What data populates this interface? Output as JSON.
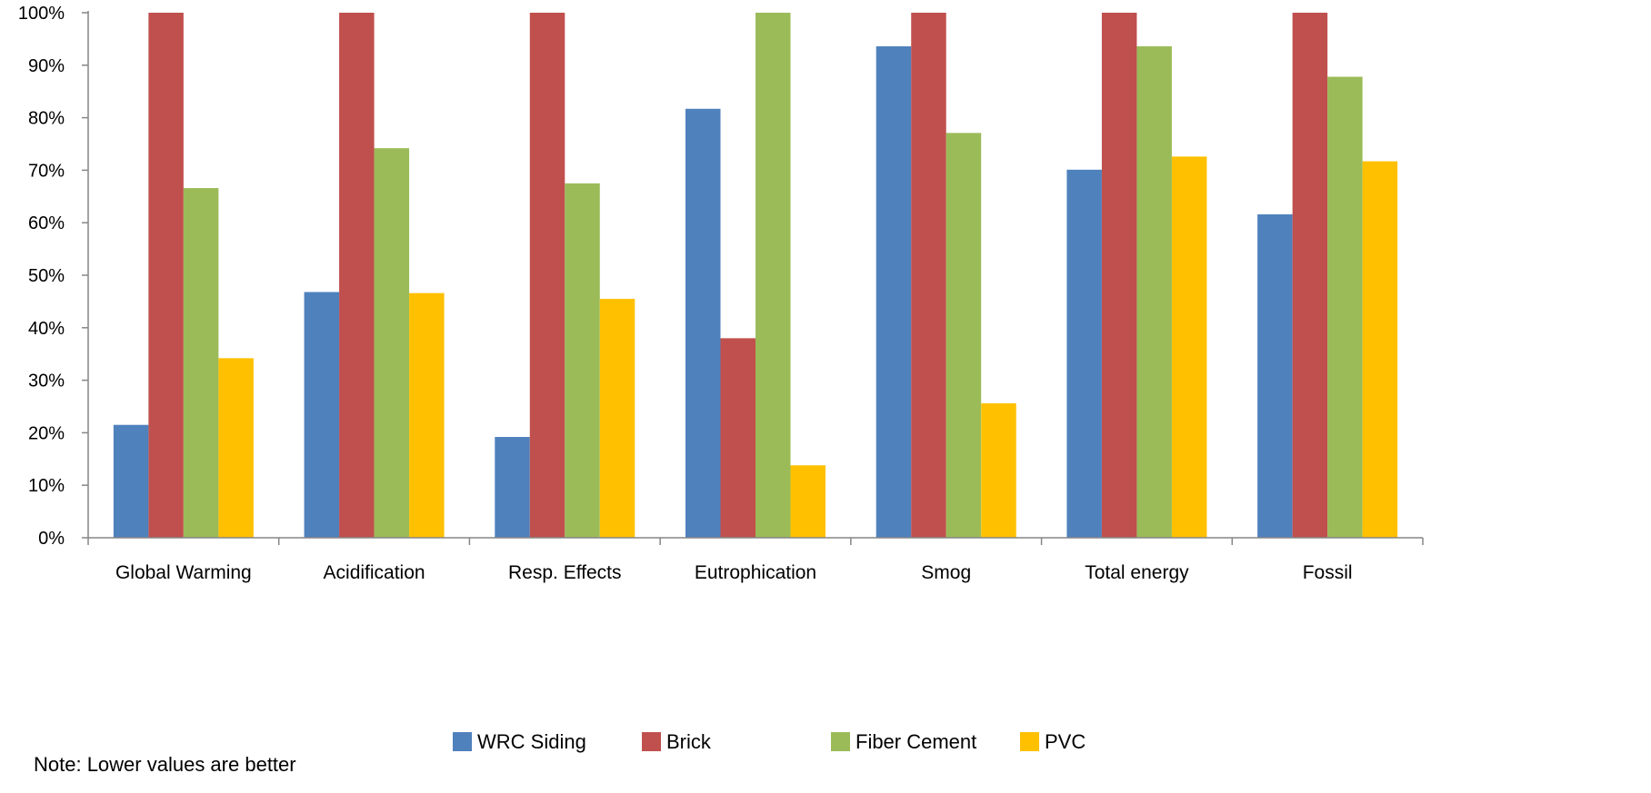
{
  "note": "Note: Lower values are better",
  "colors": {
    "wrc_siding": "#4f81bd",
    "brick": "#c0504d",
    "fiber_cement": "#9bbb59",
    "pvc": "#ffc000",
    "axis": "#868686",
    "text": "#000000"
  },
  "chart_data": {
    "type": "bar",
    "title": "",
    "xlabel": "",
    "ylabel": "",
    "ylim": [
      0,
      100
    ],
    "y_unit": "%",
    "y_ticks": [
      0,
      10,
      20,
      30,
      40,
      50,
      60,
      70,
      80,
      90,
      100
    ],
    "y_tick_labels": [
      "0%",
      "10%",
      "20%",
      "30%",
      "40%",
      "50%",
      "60%",
      "70%",
      "80%",
      "90%",
      "100%"
    ],
    "grid": false,
    "legend_position": "bottom",
    "categories": [
      "Global Warming",
      "Acidification",
      "Resp. Effects",
      "Eutrophication",
      "Smog",
      "Total energy",
      "Fossil"
    ],
    "series": [
      {
        "name": "WRC Siding",
        "color": "#4f81bd",
        "values": [
          21.5,
          46.8,
          19.2,
          81.7,
          93.6,
          70.1,
          61.6
        ]
      },
      {
        "name": "Brick",
        "color": "#c0504d",
        "values": [
          100,
          100,
          100,
          38.0,
          100,
          100,
          100
        ]
      },
      {
        "name": "Fiber Cement",
        "color": "#9bbb59",
        "values": [
          66.6,
          74.2,
          67.5,
          100,
          77.1,
          93.6,
          87.8
        ]
      },
      {
        "name": "PVC",
        "color": "#ffc000",
        "values": [
          34.2,
          46.6,
          45.5,
          13.8,
          25.6,
          72.6,
          71.7
        ]
      }
    ]
  }
}
